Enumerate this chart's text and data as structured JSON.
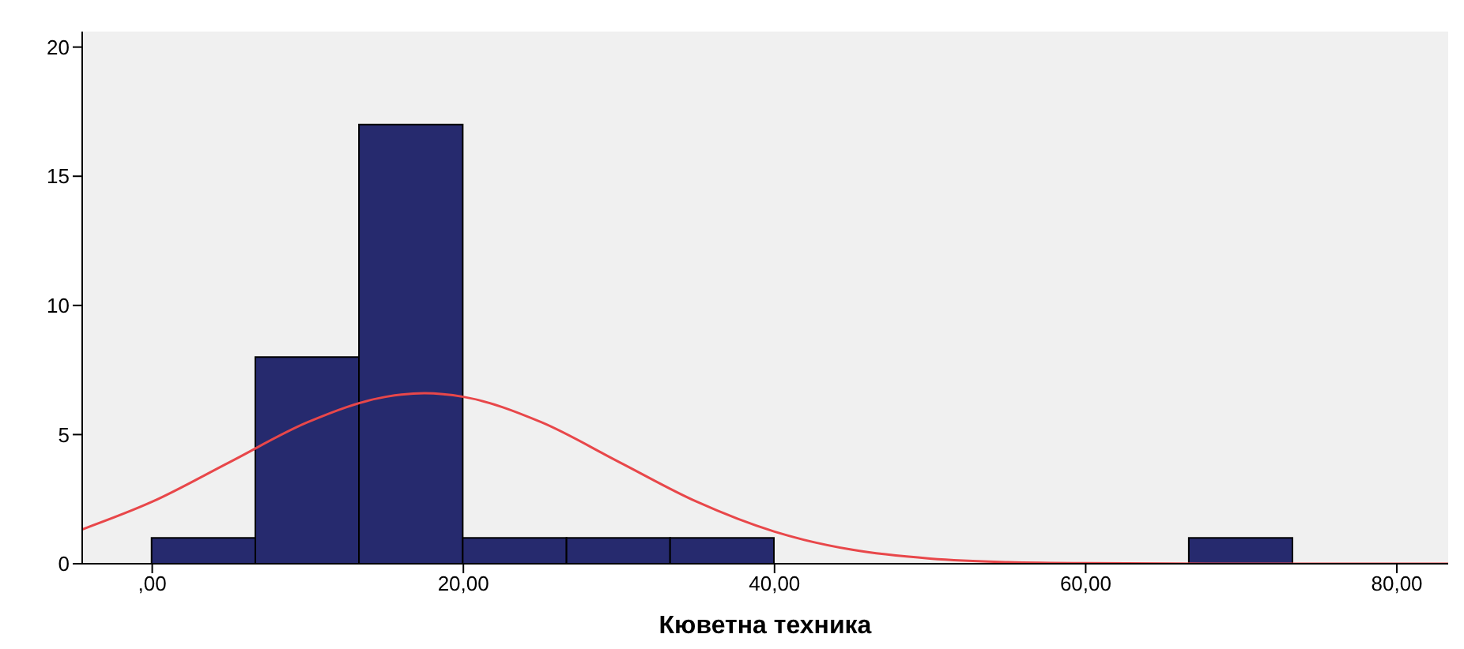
{
  "chart_data": {
    "type": "histogram",
    "xlabel": "Кюветна техника",
    "bins": [
      0,
      6.67,
      13.33,
      20,
      26.67,
      33.33,
      40,
      46.67,
      53.33,
      60,
      66.67,
      73.33
    ],
    "values": [
      1,
      8,
      17,
      1,
      1,
      1,
      0,
      0,
      0,
      0,
      1
    ],
    "color": "#262a6e",
    "series": [
      {
        "type": "line",
        "color": "#e8474a",
        "x": [
          -4.5,
          0,
          5,
          10,
          15,
          17.5,
          20,
          25,
          30,
          35,
          40,
          45,
          50,
          55,
          60,
          70,
          83.3
        ],
        "values": [
          1.33,
          2.4,
          3.94,
          5.48,
          6.46,
          6.6,
          6.46,
          5.48,
          3.94,
          2.4,
          1.24,
          0.54,
          0.2,
          0.06,
          0.02,
          0,
          0
        ]
      }
    ],
    "xlim": [
      -4.5,
      83.3
    ],
    "ylim": [
      0,
      20.6
    ],
    "xticks": [
      {
        "value": 0,
        "label": ",00"
      },
      {
        "value": 20,
        "label": "20,00"
      },
      {
        "value": 40,
        "label": "40,00"
      },
      {
        "value": 60,
        "label": "60,00"
      },
      {
        "value": 80,
        "label": "80,00"
      }
    ],
    "yticks": [
      0,
      5,
      10,
      15,
      20
    ],
    "grid": false,
    "legend": false,
    "marker": "none",
    "line_style": "solid"
  }
}
